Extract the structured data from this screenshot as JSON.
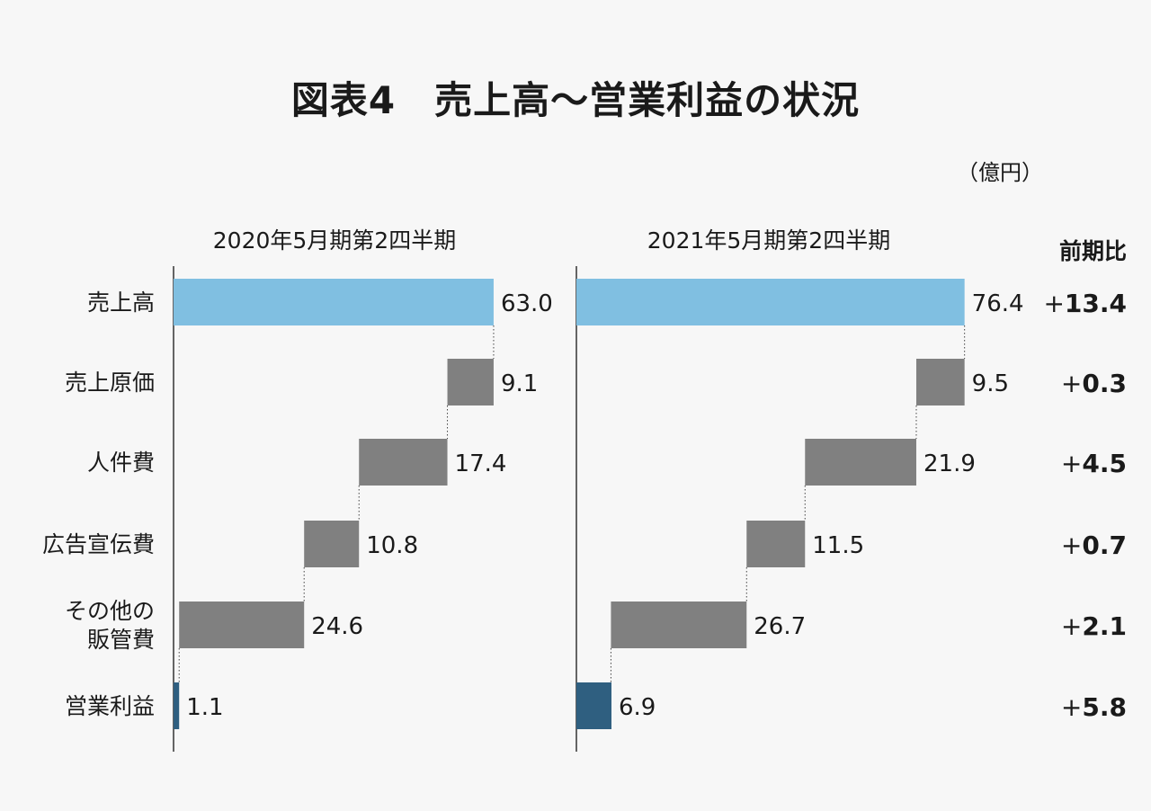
{
  "chart_data": {
    "type": "waterfall",
    "title": "図表4　売上高～営業利益の状況",
    "unit": "（億円）",
    "categories": [
      "売上高",
      "売上原価",
      "人件費",
      "広告宣伝費",
      "その他の\n販管費",
      "営業利益"
    ],
    "series": [
      {
        "name": "2020年5月期第2四半期",
        "values": [
          63.0,
          9.1,
          17.4,
          10.8,
          24.6,
          1.1
        ],
        "labels": [
          "63.0",
          "9.1",
          "17.4",
          "10.8",
          "24.6",
          "1.1"
        ]
      },
      {
        "name": "2021年5月期第2四半期",
        "values": [
          76.4,
          9.5,
          21.9,
          11.5,
          26.7,
          6.9
        ],
        "labels": [
          "76.4",
          "9.5",
          "21.9",
          "11.5",
          "26.7",
          "6.9"
        ]
      }
    ],
    "comparison": {
      "header": "前期比",
      "values": [
        "+13.4",
        "+0.3",
        "+4.5",
        "+0.7",
        "+2.1",
        "+5.8"
      ]
    },
    "colors": {
      "total": "#80bfe1",
      "cost": "#808080",
      "profit": "#2f5f80"
    }
  }
}
